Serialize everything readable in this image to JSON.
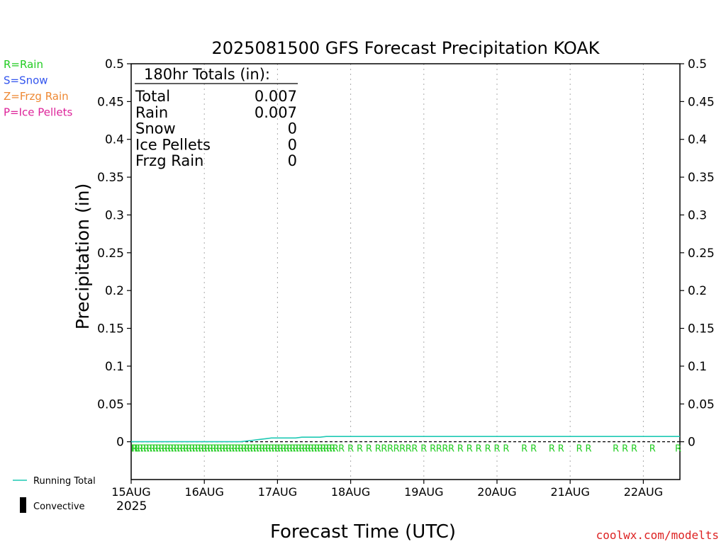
{
  "chart_data": {
    "type": "line",
    "title": "2025081500 GFS Forecast Precipitation KOAK",
    "xlabel": "Forecast Time (UTC)",
    "ylabel": "Precipitation (in)",
    "ylim": [
      -0.05,
      0.5
    ],
    "yticks": [
      "0",
      "0.05",
      "0.1",
      "0.15",
      "0.2",
      "0.25",
      "0.3",
      "0.35",
      "0.4",
      "0.45",
      "0.5"
    ],
    "x_range_hours": [
      0,
      180
    ],
    "x_ticks": [
      {
        "label": "15AUG",
        "hour": 0
      },
      {
        "label": "16AUG",
        "hour": 24
      },
      {
        "label": "17AUG",
        "hour": 48
      },
      {
        "label": "18AUG",
        "hour": 72
      },
      {
        "label": "19AUG",
        "hour": 96
      },
      {
        "label": "20AUG",
        "hour": 120
      },
      {
        "label": "21AUG",
        "hour": 144
      },
      {
        "label": "22AUG",
        "hour": 168
      }
    ],
    "year_label": "2025",
    "grid": true,
    "series": [
      {
        "name": "Running Total",
        "color": "#1fc9b4",
        "x": [
          0,
          36,
          38,
          40,
          42,
          44,
          46,
          48,
          50,
          52,
          54,
          56,
          58,
          60,
          62,
          64,
          66,
          70,
          80,
          100,
          120,
          150,
          180
        ],
        "y": [
          0,
          0,
          0.001,
          0.002,
          0.003,
          0.004,
          0.005,
          0.005,
          0.005,
          0.005,
          0.005,
          0.006,
          0.006,
          0.006,
          0.006,
          0.007,
          0.007,
          0.007,
          0.007,
          0.007,
          0.007,
          0.007,
          0.007
        ]
      }
    ],
    "precip_type_markers": {
      "label": "R",
      "hours": [
        0,
        1,
        2,
        3,
        4,
        5,
        6,
        7,
        8,
        9,
        10,
        11,
        12,
        13,
        14,
        15,
        16,
        17,
        18,
        19,
        20,
        21,
        22,
        23,
        24,
        25,
        26,
        27,
        28,
        29,
        30,
        31,
        32,
        33,
        34,
        35,
        36,
        37,
        38,
        39,
        40,
        41,
        42,
        43,
        44,
        45,
        46,
        47,
        48,
        49,
        50,
        51,
        52,
        53,
        54,
        55,
        56,
        57,
        58,
        59,
        60,
        61,
        62,
        63,
        64,
        65,
        66,
        67,
        69,
        72,
        75,
        78,
        81,
        83,
        85,
        87,
        89,
        91,
        93,
        96,
        99,
        101,
        103,
        105,
        108,
        111,
        114,
        117,
        120,
        123,
        129,
        132,
        138,
        141,
        147,
        150,
        159,
        162,
        165,
        171,
        180
      ]
    },
    "totals_box": {
      "heading": "180hr Totals (in):",
      "rows": [
        {
          "label": "Total",
          "value": "0.007"
        },
        {
          "label": "Rain",
          "value": "0.007"
        },
        {
          "label": "Snow",
          "value": "0"
        },
        {
          "label": "Ice Pellets",
          "value": "0"
        },
        {
          "label": "Frzg Rain",
          "value": "0"
        }
      ]
    },
    "type_legend": [
      {
        "text": "R=Rain",
        "color": "#22cc22"
      },
      {
        "text": "S=Snow",
        "color": "#3355ee"
      },
      {
        "text": "Z=Frzg Rain",
        "color": "#ee8833"
      },
      {
        "text": "P=Ice Pellets",
        "color": "#dd2299"
      }
    ],
    "bottom_legend": [
      {
        "text": "Running Total",
        "kind": "line",
        "color": "#1fc9b4"
      },
      {
        "text": "Convective",
        "kind": "bar",
        "color": "#000000"
      }
    ]
  },
  "watermark": "coolwx.com/modelts"
}
